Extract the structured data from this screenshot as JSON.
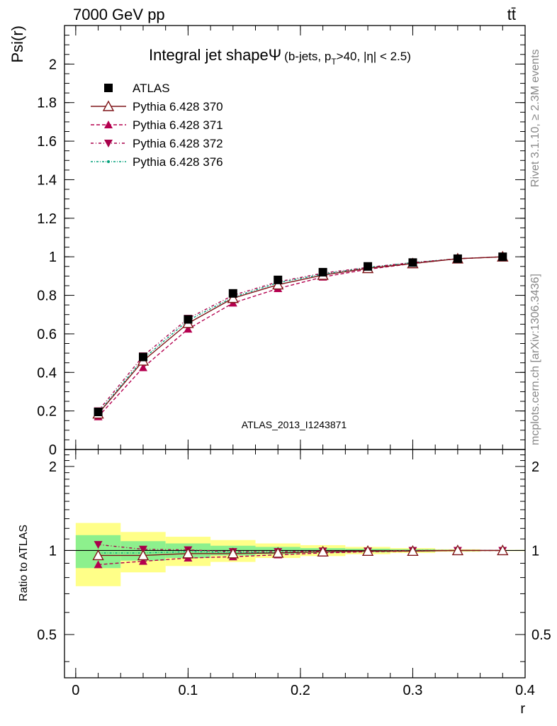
{
  "header": {
    "energy_label": "7000 GeV pp",
    "process_label": "tt̄"
  },
  "side_labels": {
    "rivet": "Rivet 3.1.10, ≥ 2.3M events",
    "mcplots": "mcplots.cern.ch [arXiv:1306.3436]"
  },
  "watermark": "ATLAS_2013_I1243871",
  "colors": {
    "atlas": "#000000",
    "p370": "#7f1518",
    "p371": "#b5004f",
    "p372": "#a8004a",
    "p376": "#00a07a",
    "band_inner": "#8df08d",
    "band_outer": "#ffff88"
  },
  "chart_data": {
    "type": "line",
    "title_main": "Integral jet shape",
    "title_symbol": "Ψ",
    "title_extra": "(b-jets, p",
    "title_sub": "T",
    "title_tail": ">40, |η| < 2.5)",
    "ylabel": "Psi(r)",
    "xlabel": "r",
    "ratio_ylabel": "Ratio to ATLAS",
    "xlim": [
      -0.01,
      0.4
    ],
    "ylim": [
      0,
      2.2
    ],
    "ratio_ylim": [
      0.35,
      2.3
    ],
    "x_ticks": [
      0,
      0.1,
      0.2,
      0.3,
      0.4
    ],
    "x_tick_labels": [
      "0",
      "0.1",
      "0.2",
      "0.3",
      "0.4"
    ],
    "y_ticks": [
      0,
      0.2,
      0.4,
      0.6,
      0.8,
      1,
      1.2,
      1.4,
      1.6,
      1.8,
      2
    ],
    "y_tick_labels": [
      "0",
      "0.2",
      "0.4",
      "0.6",
      "0.8",
      "1",
      "1.2",
      "1.4",
      "1.6",
      "1.8",
      "2"
    ],
    "ratio_ticks": [
      0.5,
      1,
      2
    ],
    "ratio_tick_labels": [
      "0.5",
      "1",
      "2"
    ],
    "x": [
      0.02,
      0.06,
      0.1,
      0.14,
      0.18,
      0.22,
      0.26,
      0.3,
      0.34,
      0.38
    ],
    "bin_edges": [
      0,
      0.04,
      0.08,
      0.12,
      0.16,
      0.2,
      0.24,
      0.28,
      0.32,
      0.36,
      0.4
    ],
    "series": [
      {
        "name": "ATLAS",
        "key": "atlas",
        "marker": "square",
        "dash": "",
        "values": [
          0.195,
          0.48,
          0.675,
          0.81,
          0.88,
          0.92,
          0.95,
          0.97,
          0.99,
          1.0
        ],
        "ratio": [
          1,
          1,
          1,
          1,
          1,
          1,
          1,
          1,
          1,
          1
        ]
      },
      {
        "name": "Pythia 6.428 370",
        "key": "p370",
        "marker": "triangle-open",
        "dash": "",
        "values": [
          0.185,
          0.46,
          0.655,
          0.785,
          0.855,
          0.905,
          0.94,
          0.965,
          0.99,
          1.0
        ],
        "ratio": [
          0.96,
          0.96,
          0.975,
          0.975,
          0.98,
          0.99,
          0.995,
          0.995,
          1.0,
          1.0
        ]
      },
      {
        "name": "Pythia 6.428 371",
        "key": "p371",
        "marker": "triangle-up",
        "dash": "5,3",
        "values": [
          0.17,
          0.425,
          0.625,
          0.76,
          0.835,
          0.895,
          0.935,
          0.965,
          0.99,
          1.0
        ],
        "ratio": [
          0.89,
          0.915,
          0.94,
          0.95,
          0.965,
          0.98,
          0.99,
          0.995,
          1.0,
          1.0
        ]
      },
      {
        "name": "Pythia 6.428 372",
        "key": "p372",
        "marker": "triangle-down",
        "dash": "4,3,1,3",
        "values": [
          0.2,
          0.485,
          0.68,
          0.8,
          0.87,
          0.915,
          0.945,
          0.97,
          0.99,
          1.0
        ],
        "ratio": [
          1.05,
          1.01,
          1.005,
          0.99,
          0.99,
          0.995,
          0.995,
          1.0,
          1.0,
          1.0
        ]
      },
      {
        "name": "Pythia 6.428 376",
        "key": "p376",
        "marker": "dot",
        "dash": "3,2,1,2",
        "values": [
          0.19,
          0.47,
          0.67,
          0.79,
          0.865,
          0.91,
          0.945,
          0.97,
          0.99,
          1.0
        ],
        "ratio": [
          0.98,
          0.98,
          0.99,
          0.985,
          0.985,
          0.99,
          0.995,
          1.0,
          1.0,
          1.0
        ]
      }
    ],
    "ratio_band_inner": [
      0.135,
      0.08,
      0.06,
      0.04,
      0.03,
      0.02,
      0.015,
      0.01,
      0.005,
      0.003
    ],
    "ratio_band_outer": [
      0.255,
      0.165,
      0.12,
      0.09,
      0.06,
      0.045,
      0.03,
      0.02,
      0.01,
      0.005
    ]
  }
}
